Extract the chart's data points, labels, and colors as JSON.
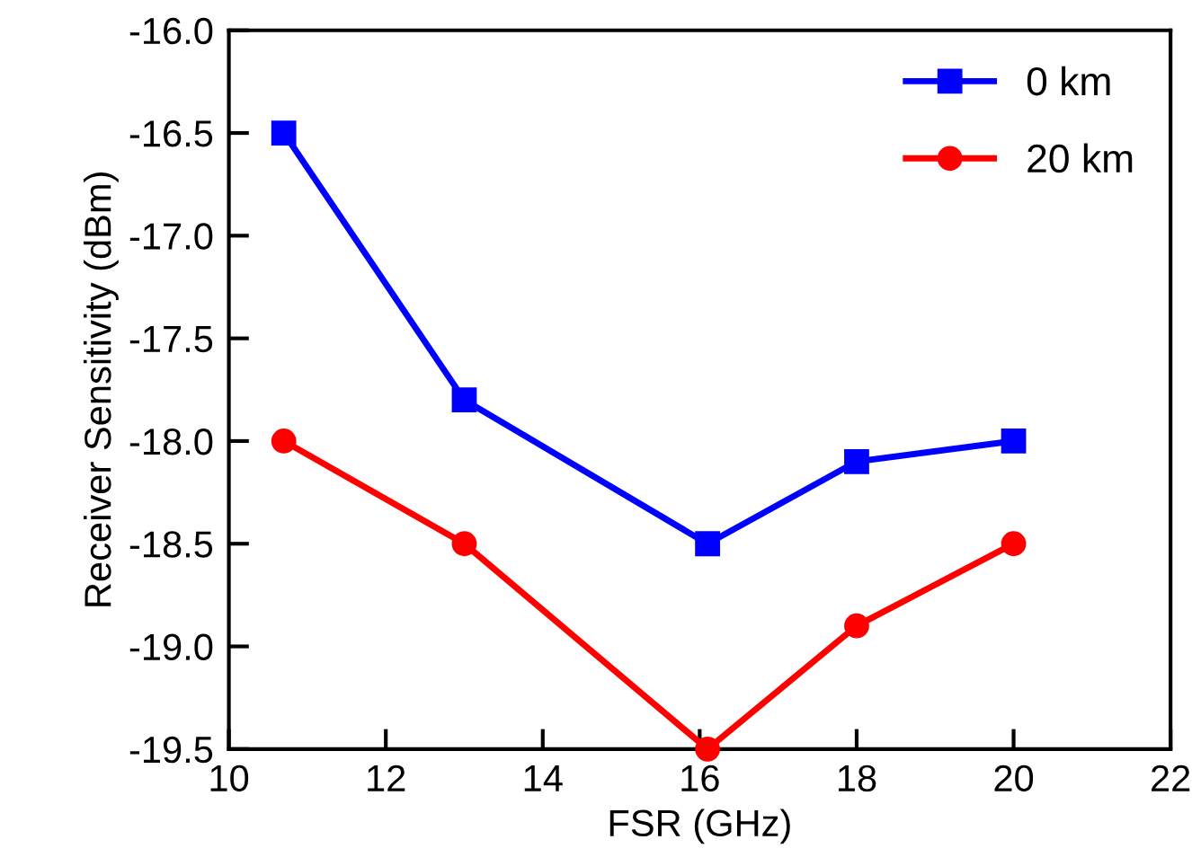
{
  "chart_data": {
    "type": "line",
    "xlabel": "FSR (GHz)",
    "ylabel": "Receiver Sensitivity (dBm)",
    "xlim": [
      10,
      22
    ],
    "xticks": [
      10,
      12,
      14,
      16,
      18,
      20,
      22
    ],
    "ylim": [
      -19.5,
      -16.0
    ],
    "yticks": [
      {
        "value": -19.5,
        "label": "-19.5"
      },
      {
        "value": -19.0,
        "label": "-19.0"
      },
      {
        "value": -18.5,
        "label": "-18.5"
      },
      {
        "value": -18.0,
        "label": "-18.0"
      },
      {
        "value": -17.5,
        "label": "-17.5"
      },
      {
        "value": -17.0,
        "label": "-17.0"
      },
      {
        "value": -16.5,
        "label": "-16.5"
      },
      {
        "value": -16.0,
        "label": "-16.0"
      }
    ],
    "grid": false,
    "legend": "top right",
    "series": [
      {
        "name": "0 km",
        "color": "#0000ff",
        "marker": "square",
        "x": [
          10.7,
          13,
          16.1,
          18,
          20
        ],
        "values": [
          -16.5,
          -17.8,
          -18.5,
          -18.1,
          -18.0
        ]
      },
      {
        "name": "20 km",
        "color": "#ff0000",
        "marker": "circle",
        "x": [
          10.7,
          13,
          16.1,
          18,
          20
        ],
        "values": [
          -18.0,
          -18.5,
          -19.5,
          -18.9,
          -18.5
        ]
      }
    ]
  }
}
